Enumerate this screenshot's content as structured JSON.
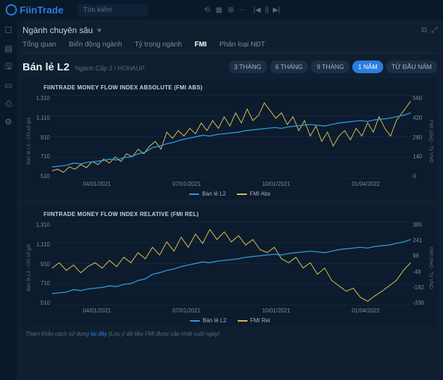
{
  "brand": "FiinTrade",
  "search_placeholder": "Tìm kiếm",
  "breadcrumb": "Ngành chuyên sâu",
  "tabs": [
    "Tổng quan",
    "Biến động ngành",
    "Tỷ trọng ngành",
    "FMI",
    "Phân loại NĐT"
  ],
  "active_tab": 3,
  "title": "Bán lẻ L2",
  "subtitle": "Ngành Cấp 2 / HOHAUP",
  "time_buttons": [
    "3 THÁNG",
    "6 THÁNG",
    "9 THÁNG",
    "1 NĂM",
    "TỪ ĐẦU NĂM"
  ],
  "active_time": 3,
  "chart1": {
    "title": "FIINTRADE MONEY FLOW INDEX ABSOLUTE (FMI ABS)",
    "y_left_label": "Bán lẻ L2 - Chỉ số giá",
    "y_right_label": "FMI (Abs) - Tỷ VND",
    "y_left_ticks": [
      "1,310",
      "1,110",
      "910",
      "710",
      "510"
    ],
    "y_right_ticks": [
      "560",
      "420",
      "280",
      "140",
      "0"
    ],
    "x_ticks": [
      "04/01/2021",
      "07/01/2021",
      "10/01/2021",
      "01/04/2022"
    ],
    "legend": [
      {
        "label": "Bán lẻ L2",
        "color": "#2a9de1"
      },
      {
        "label": "FMI Abs",
        "color": "#d4c04a"
      }
    ],
    "grid_color": "#1a2f45",
    "line1_color": "#2a9de1",
    "line2_color": "#d4c04a",
    "line1_path": "M0,95 L10,94 L20,93 L30,90 L40,91 L50,89 L60,88 L70,87 L80,85 L90,86 L100,83 L110,82 L120,78 L130,76 L140,70 L150,68 L160,65 L170,63 L180,60 L190,58 L200,56 L210,54 L220,55 L230,53 L240,52 L250,51 L260,50 L270,48 L280,47 L290,46 L300,45 L310,44 L320,45 L330,43 L340,42 L350,41 L360,40 L370,41 L380,42 L390,40 L400,38 L410,37 L420,36 L430,35 L440,36 L450,34 L460,33 L470,32 L480,30 L490,28 L500,25",
    "line2_path": "M0,100 L8,98 L16,102 L24,95 L32,98 L40,92 L48,96 L56,88 L64,92 L72,85 L80,90 L88,82 L96,88 L104,78 L112,82 L120,72 L128,78 L136,68 L144,62 L152,72 L160,50 L168,58 L176,48 L184,55 L192,45 L200,52 L208,38 L216,48 L224,35 L232,45 L240,30 L248,42 L256,25 L264,38 L272,20 L280,35 L288,28 L296,12 L304,22 L312,32 L320,25 L328,40 L336,30 L344,48 L352,35 L360,55 L368,42 L376,62 L384,50 L392,68 L400,55 L408,48 L416,60 L424,45 L432,55 L440,38 L448,50 L456,30 L464,45 L472,55 L480,35 L488,25 L496,15 L500,10"
  },
  "chart2": {
    "title": "FIINTRADE MONEY FLOW INDEX RELATIVE (FMI REL)",
    "y_left_label": "Bán lẻ L2 - Chỉ số giá",
    "y_right_label": "FMI (Rel) - Tỷ VND",
    "y_left_ticks": [
      "1,310",
      "1,110",
      "910",
      "710",
      "510"
    ],
    "y_right_ticks": [
      "385",
      "241",
      "96",
      "-48",
      "-192",
      "-336"
    ],
    "x_ticks": [
      "04/01/2021",
      "07/01/2021",
      "10/01/2021",
      "01/04/2022"
    ],
    "legend": [
      {
        "label": "Bán lẻ L2",
        "color": "#2a9de1"
      },
      {
        "label": "FMI Rel",
        "color": "#d4c04a"
      }
    ],
    "grid_color": "#1a2f45",
    "line1_color": "#2a9de1",
    "line2_color": "#d4c04a",
    "line1_path": "M0,95 L10,94 L20,93 L30,90 L40,91 L50,89 L60,88 L70,87 L80,85 L90,86 L100,83 L110,82 L120,78 L130,76 L140,70 L150,68 L160,65 L170,63 L180,60 L190,58 L200,56 L210,54 L220,55 L230,53 L240,52 L250,51 L260,50 L270,48 L280,47 L290,46 L300,45 L310,44 L320,45 L330,43 L340,42 L350,41 L360,40 L370,41 L380,42 L390,40 L400,38 L410,37 L420,36 L430,35 L440,36 L450,34 L460,33 L470,32 L480,30 L490,28 L500,25",
    "line2_path": "M0,62 L10,55 L20,65 L30,58 L40,68 L50,60 L60,55 L70,62 L80,52 L90,60 L100,48 L110,55 L120,42 L130,50 L140,35 L150,45 L160,28 L170,40 L180,22 L190,35 L200,18 L210,30 L220,12 L230,25 L240,15 L250,28 L260,20 L270,32 L280,25 L290,38 L300,42 L310,35 L320,50 L330,55 L340,48 L350,62 L360,55 L370,70 L380,62 L390,78 L400,85 L410,92 L420,88 L430,100 L440,105 L450,98 L460,92 L470,85 L480,78 L490,65 L500,55"
  },
  "footer_note_pre": "Tham khảo cách sử dụng ",
  "footer_note_link": "tại đây",
  "footer_note_post": " (Lưu ý dữ liệu FMI được cập nhật cuối ngày)"
}
